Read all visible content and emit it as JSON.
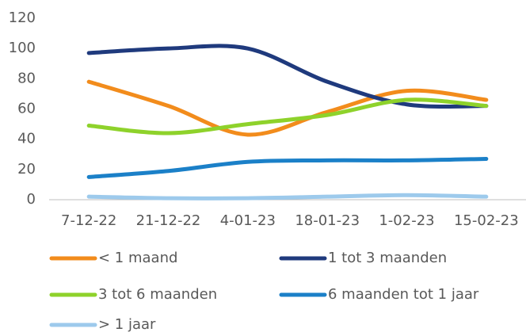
{
  "chart_data": {
    "type": "line",
    "categories": [
      "7-12-22",
      "21-12-22",
      "4-01-23",
      "18-01-23",
      "1-02-23",
      "15-02-23"
    ],
    "series": [
      {
        "name": "< 1 maand",
        "color": "#f28c1c",
        "values": [
          78,
          62,
          43,
          58,
          72,
          66
        ]
      },
      {
        "name": "1 tot 3 maanden",
        "color": "#1f3a7d",
        "values": [
          97,
          100,
          100,
          78,
          63,
          62
        ]
      },
      {
        "name": "3 tot 6 maanden",
        "color": "#8ed22b",
        "values": [
          49,
          44,
          50,
          56,
          66,
          62
        ]
      },
      {
        "name": "6 maanden tot 1 jaar",
        "color": "#1b80c8",
        "values": [
          15,
          19,
          25,
          26,
          26,
          27
        ]
      },
      {
        "name": "> 1 jaar",
        "color": "#9dcaec",
        "values": [
          2,
          1,
          1,
          2,
          3,
          2
        ]
      }
    ],
    "ylim": [
      0,
      120
    ],
    "yticks": [
      0,
      20,
      40,
      60,
      80,
      100,
      120
    ],
    "grid": false,
    "smooth": true,
    "legend": "bottom"
  }
}
